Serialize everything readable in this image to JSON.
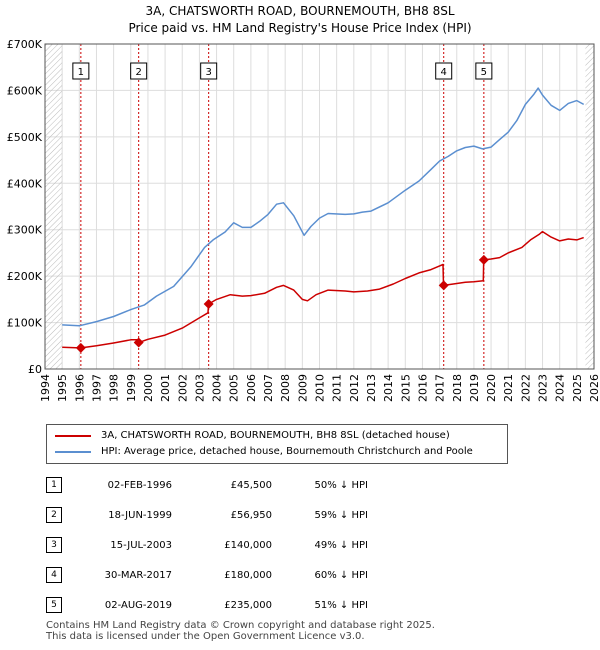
{
  "header": {
    "title_line1": "3A, CHATSWORTH ROAD, BOURNEMOUTH, BH8 8SL",
    "title_line2": "Price paid vs. HM Land Registry's House Price Index (HPI)"
  },
  "chart_data": {
    "type": "line",
    "title": "3A, CHATSWORTH ROAD, BOURNEMOUTH, BH8 8SL — Price paid vs. HM Land Registry's House Price Index (HPI)",
    "xlabel": "",
    "ylabel": "",
    "xlim": [
      1994,
      2026
    ],
    "ylim": [
      0,
      700000
    ],
    "x_ticks": [
      1994,
      1995,
      1996,
      1997,
      1998,
      1999,
      2000,
      2001,
      2002,
      2003,
      2004,
      2005,
      2006,
      2007,
      2008,
      2009,
      2010,
      2011,
      2012,
      2013,
      2014,
      2015,
      2016,
      2017,
      2018,
      2019,
      2020,
      2021,
      2022,
      2023,
      2024,
      2025,
      2026
    ],
    "y_ticks": [
      0,
      100000,
      200000,
      300000,
      400000,
      500000,
      600000,
      700000
    ],
    "y_tick_labels": [
      "£0",
      "£100K",
      "£200K",
      "£300K",
      "£400K",
      "£500K",
      "£600K",
      "£700K"
    ],
    "data_start": 1995.0,
    "data_end": 2025.5,
    "hatch_before": 1995.0,
    "hatch_after": 2025.5,
    "colors": {
      "property": "#cc0000",
      "hpi": "#5b8fd0"
    },
    "series": [
      {
        "name": "3A, CHATSWORTH ROAD, BOURNEMOUTH, BH8 8SL (detached house)",
        "color": "#cc0000",
        "points": [
          [
            1995.0,
            47000
          ],
          [
            1996.0,
            45500
          ],
          [
            1996.09,
            45500
          ],
          [
            1997.0,
            50000
          ],
          [
            1998.0,
            56000
          ],
          [
            1999.0,
            63000
          ],
          [
            1999.45,
            63000
          ],
          [
            1999.46,
            56950
          ],
          [
            2000.0,
            64000
          ],
          [
            2001.0,
            73000
          ],
          [
            2002.0,
            88000
          ],
          [
            2003.0,
            110000
          ],
          [
            2003.5,
            121000
          ],
          [
            2003.53,
            140000
          ],
          [
            2004.0,
            150000
          ],
          [
            2004.8,
            160000
          ],
          [
            2005.5,
            157000
          ],
          [
            2006.0,
            158000
          ],
          [
            2006.8,
            163000
          ],
          [
            2007.5,
            176000
          ],
          [
            2007.9,
            180000
          ],
          [
            2008.5,
            170000
          ],
          [
            2009.0,
            150000
          ],
          [
            2009.3,
            147000
          ],
          [
            2009.8,
            160000
          ],
          [
            2010.5,
            170000
          ],
          [
            2011.5,
            168000
          ],
          [
            2012.0,
            166000
          ],
          [
            2012.8,
            168000
          ],
          [
            2013.5,
            172000
          ],
          [
            2014.3,
            183000
          ],
          [
            2015.0,
            195000
          ],
          [
            2015.8,
            207000
          ],
          [
            2016.5,
            214000
          ],
          [
            2017.0,
            222000
          ],
          [
            2017.2,
            225000
          ],
          [
            2017.23,
            180000
          ],
          [
            2017.8,
            183000
          ],
          [
            2018.5,
            187000
          ],
          [
            2019.0,
            188000
          ],
          [
            2019.55,
            190000
          ],
          [
            2019.57,
            235000
          ],
          [
            2020.0,
            237000
          ],
          [
            2020.5,
            240000
          ],
          [
            2021.0,
            250000
          ],
          [
            2021.8,
            262000
          ],
          [
            2022.3,
            278000
          ],
          [
            2022.8,
            290000
          ],
          [
            2023.0,
            296000
          ],
          [
            2023.5,
            284000
          ],
          [
            2024.0,
            276000
          ],
          [
            2024.5,
            280000
          ],
          [
            2025.0,
            278000
          ],
          [
            2025.4,
            283000
          ]
        ]
      },
      {
        "name": "HPI: Average price, detached house, Bournemouth Christchurch and Poole",
        "color": "#5b8fd0",
        "points": [
          [
            1995.0,
            95000
          ],
          [
            1996.0,
            93000
          ],
          [
            1997.0,
            102000
          ],
          [
            1998.0,
            113000
          ],
          [
            1999.0,
            128000
          ],
          [
            1999.8,
            138000
          ],
          [
            2000.5,
            157000
          ],
          [
            2001.5,
            178000
          ],
          [
            2002.5,
            220000
          ],
          [
            2003.3,
            262000
          ],
          [
            2003.8,
            278000
          ],
          [
            2004.5,
            295000
          ],
          [
            2005.0,
            315000
          ],
          [
            2005.5,
            305000
          ],
          [
            2006.0,
            305000
          ],
          [
            2006.5,
            318000
          ],
          [
            2007.0,
            333000
          ],
          [
            2007.5,
            355000
          ],
          [
            2007.9,
            358000
          ],
          [
            2008.5,
            330000
          ],
          [
            2009.1,
            288000
          ],
          [
            2009.5,
            307000
          ],
          [
            2010.0,
            325000
          ],
          [
            2010.5,
            335000
          ],
          [
            2011.5,
            333000
          ],
          [
            2012.0,
            334000
          ],
          [
            2012.5,
            338000
          ],
          [
            2013.0,
            340000
          ],
          [
            2014.0,
            358000
          ],
          [
            2015.0,
            385000
          ],
          [
            2015.8,
            405000
          ],
          [
            2016.5,
            430000
          ],
          [
            2017.0,
            448000
          ],
          [
            2017.5,
            458000
          ],
          [
            2018.0,
            470000
          ],
          [
            2018.5,
            477000
          ],
          [
            2019.0,
            480000
          ],
          [
            2019.5,
            474000
          ],
          [
            2020.0,
            478000
          ],
          [
            2020.5,
            494000
          ],
          [
            2021.0,
            510000
          ],
          [
            2021.5,
            535000
          ],
          [
            2022.0,
            570000
          ],
          [
            2022.5,
            592000
          ],
          [
            2022.75,
            605000
          ],
          [
            2023.0,
            590000
          ],
          [
            2023.5,
            568000
          ],
          [
            2024.0,
            557000
          ],
          [
            2024.5,
            572000
          ],
          [
            2025.0,
            578000
          ],
          [
            2025.4,
            570000
          ]
        ]
      }
    ],
    "sales": [
      {
        "label": "1",
        "x": 1996.09,
        "price": 45500
      },
      {
        "label": "2",
        "x": 1999.46,
        "price": 56950
      },
      {
        "label": "3",
        "x": 2003.54,
        "price": 140000
      },
      {
        "label": "4",
        "x": 2017.24,
        "price": 180000
      },
      {
        "label": "5",
        "x": 2019.58,
        "price": 235000
      }
    ]
  },
  "legend": {
    "property_label": "3A, CHATSWORTH ROAD, BOURNEMOUTH, BH8 8SL (detached house)",
    "hpi_label": "HPI: Average price, detached house, Bournemouth Christchurch and Poole"
  },
  "transactions": [
    {
      "num": "1",
      "date": "02-FEB-1996",
      "price": "£45,500",
      "hpi": "50% ↓ HPI"
    },
    {
      "num": "2",
      "date": "18-JUN-1999",
      "price": "£56,950",
      "hpi": "59% ↓ HPI"
    },
    {
      "num": "3",
      "date": "15-JUL-2003",
      "price": "£140,000",
      "hpi": "49% ↓ HPI"
    },
    {
      "num": "4",
      "date": "30-MAR-2017",
      "price": "£180,000",
      "hpi": "60% ↓ HPI"
    },
    {
      "num": "5",
      "date": "02-AUG-2019",
      "price": "£235,000",
      "hpi": "51% ↓ HPI"
    }
  ],
  "footer": {
    "line1": "Contains HM Land Registry data © Crown copyright and database right 2025.",
    "line2": "This data is licensed under the Open Government Licence v3.0."
  }
}
